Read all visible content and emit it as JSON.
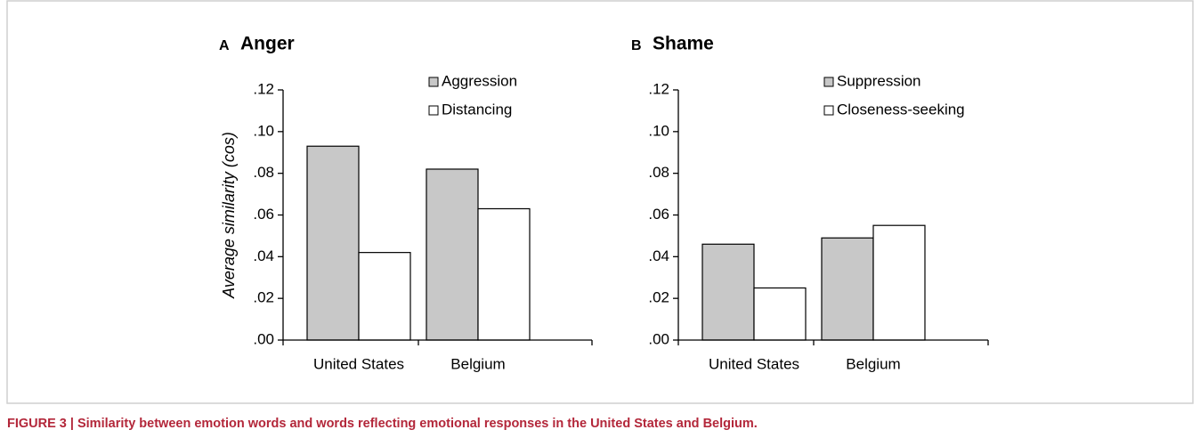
{
  "chart_data": [
    {
      "type": "bar",
      "panel": "A",
      "title": "Anger",
      "y_label": "Average similarity (cos)",
      "categories": [
        "United States",
        "Belgium"
      ],
      "series": [
        {
          "name": "Aggression",
          "color": "#c8c8c8",
          "values": [
            0.093,
            0.082
          ]
        },
        {
          "name": "Distancing",
          "color": "#ffffff",
          "values": [
            0.042,
            0.063
          ]
        }
      ],
      "ylim": [
        0,
        0.12
      ],
      "yticks": [
        {
          "value": 0,
          "label": ".00"
        },
        {
          "value": 0.02,
          "label": ".02"
        },
        {
          "value": 0.04,
          "label": ".04"
        },
        {
          "value": 0.06,
          "label": ".06"
        },
        {
          "value": 0.08,
          "label": ".08"
        },
        {
          "value": 0.1,
          "label": ".10"
        },
        {
          "value": 0.12,
          "label": ".12"
        }
      ]
    },
    {
      "type": "bar",
      "panel": "B",
      "title": "Shame",
      "categories": [
        "United States",
        "Belgium"
      ],
      "series": [
        {
          "name": "Suppression",
          "color": "#c8c8c8",
          "values": [
            0.046,
            0.049
          ]
        },
        {
          "name": "Closeness-seeking",
          "color": "#ffffff",
          "values": [
            0.025,
            0.055
          ]
        }
      ],
      "ylim": [
        0,
        0.12
      ],
      "yticks": [
        {
          "value": 0,
          "label": ".00"
        },
        {
          "value": 0.02,
          "label": ".02"
        },
        {
          "value": 0.04,
          "label": ".04"
        },
        {
          "value": 0.06,
          "label": ".06"
        },
        {
          "value": 0.08,
          "label": ".08"
        },
        {
          "value": 0.1,
          "label": ".10"
        },
        {
          "value": 0.12,
          "label": ".12"
        }
      ]
    }
  ],
  "caption": "FIGURE 3 | Similarity between emotion words and words reflecting emotional responses in the United States and Belgium."
}
